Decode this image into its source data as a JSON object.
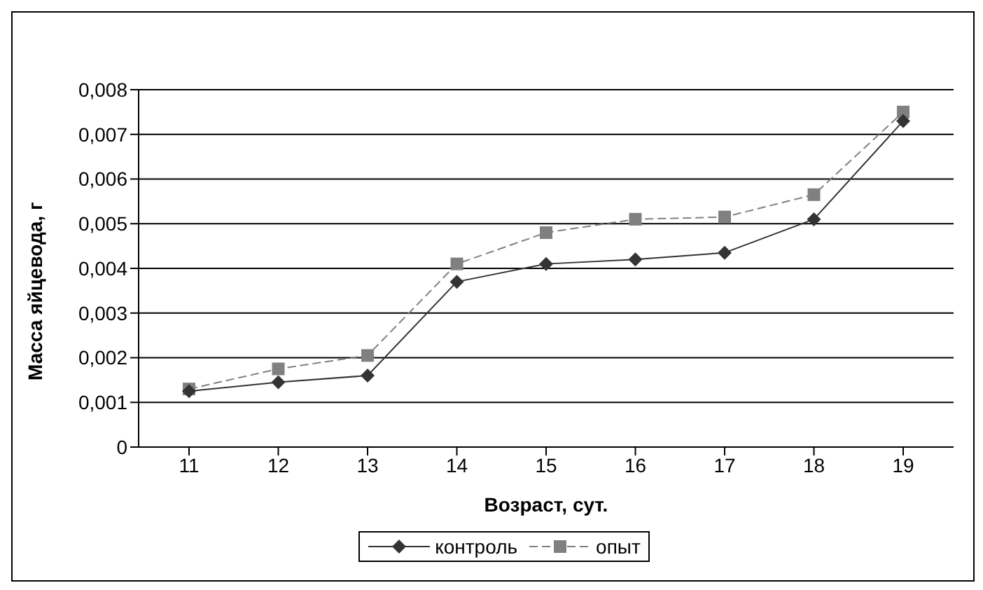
{
  "chart_data": {
    "type": "line",
    "xlabel": "Возраст, сут.",
    "ylabel": "Масса яйцевода, г",
    "categories": [
      "11",
      "12",
      "13",
      "14",
      "15",
      "16",
      "17",
      "18",
      "19"
    ],
    "series": [
      {
        "name": "контроль",
        "color": "#333333",
        "marker": "diamond",
        "line_style": "solid",
        "values": [
          0.00125,
          0.00145,
          0.0016,
          0.0037,
          0.0041,
          0.0042,
          0.00435,
          0.0051,
          0.0073
        ]
      },
      {
        "name": "опыт",
        "color": "#808080",
        "marker": "square",
        "line_style": "dashed",
        "values": [
          0.0013,
          0.00175,
          0.00205,
          0.0041,
          0.0048,
          0.0051,
          0.00515,
          0.00565,
          0.0075
        ]
      }
    ],
    "ylim": [
      0,
      0.008
    ],
    "yticks": [
      {
        "value": 0,
        "label": "0"
      },
      {
        "value": 0.001,
        "label": "0,001"
      },
      {
        "value": 0.002,
        "label": "0,002"
      },
      {
        "value": 0.003,
        "label": "0,003"
      },
      {
        "value": 0.004,
        "label": "0,004"
      },
      {
        "value": 0.005,
        "label": "0,005"
      },
      {
        "value": 0.006,
        "label": "0,006"
      },
      {
        "value": 0.007,
        "label": "0,007"
      },
      {
        "value": 0.008,
        "label": "0,008"
      }
    ],
    "grid": "y",
    "legend": "bottom"
  }
}
